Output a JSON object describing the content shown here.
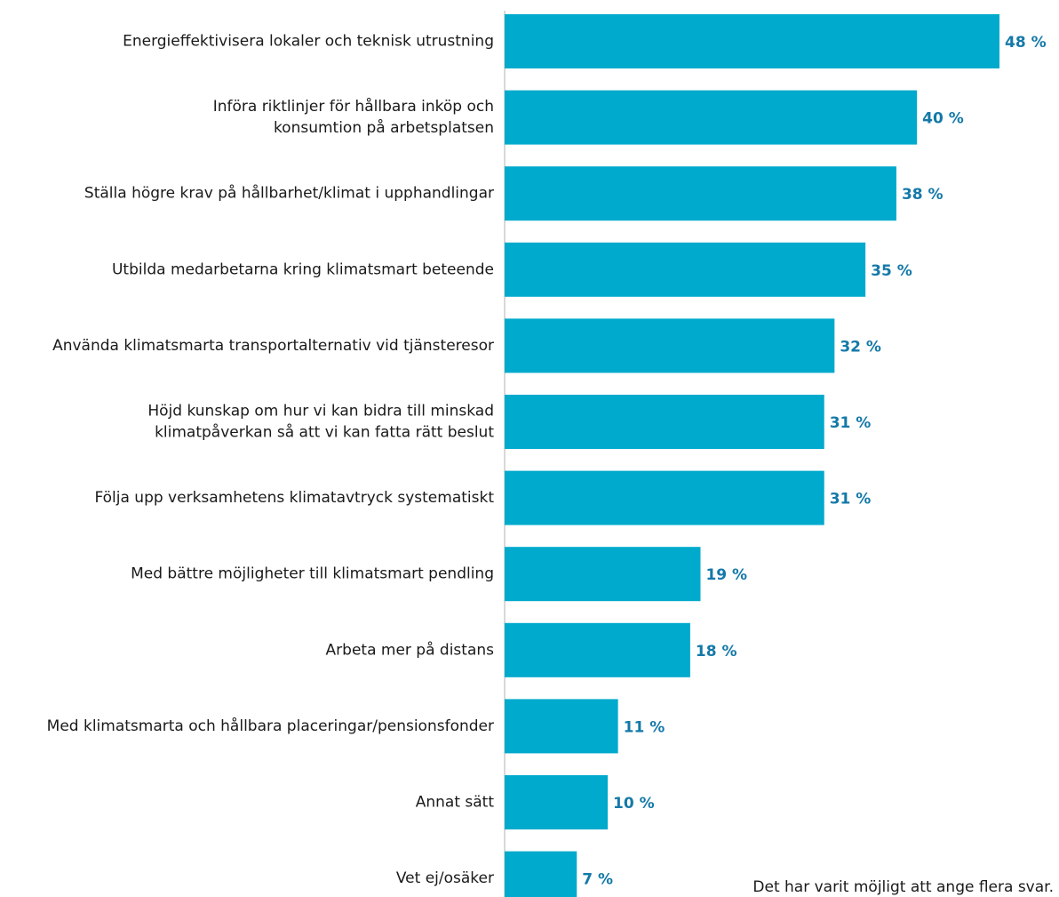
{
  "chart_data": {
    "type": "bar",
    "orientation": "horizontal",
    "categories": [
      [
        "Energieffektivisera lokaler och teknisk utrustning"
      ],
      [
        "Införa riktlinjer för hållbara inköp och",
        "konsumtion på arbetsplatsen"
      ],
      [
        "Ställa högre krav på hållbarhet/klimat i upphandlingar"
      ],
      [
        "Utbilda medarbetarna kring klimatsmart beteende"
      ],
      [
        "Använda klimatsmarta transportalternativ vid tjänsteresor"
      ],
      [
        "Höjd kunskap om hur vi kan bidra till minskad",
        "klimatpåverkan så att vi kan fatta rätt beslut"
      ],
      [
        "Följa upp verksamhetens klimatavtryck systematiskt"
      ],
      [
        "Med bättre möjligheter till klimatsmart pendling"
      ],
      [
        "Arbeta mer på distans"
      ],
      [
        "Med klimatsmarta och hållbara placeringar/pensionsfonder"
      ],
      [
        "Annat sätt"
      ],
      [
        "Vet ej/osäker"
      ]
    ],
    "values": [
      48,
      40,
      38,
      35,
      32,
      31,
      31,
      19,
      18,
      11,
      10,
      7
    ],
    "value_labels": [
      "48 %",
      "40 %",
      "38 %",
      "35 %",
      "32 %",
      "31 %",
      "31 %",
      "19 %",
      "18 %",
      "11 %",
      "10 %",
      "7 %"
    ],
    "xlim": [
      0,
      48
    ],
    "grid": false,
    "bar_color": "#00aacc",
    "value_label_color": "#1479a8",
    "axis_color": "#cccccc"
  },
  "note": "Det har varit möjligt att ange flera svar."
}
